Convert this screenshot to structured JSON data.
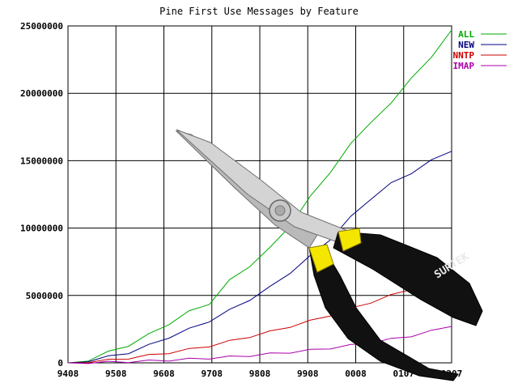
{
  "chart_data": {
    "type": "line",
    "title": "Pine First Use Messages by Feature",
    "xlabel": "",
    "ylabel": "",
    "x_tick_labels": [
      "9408",
      "9508",
      "9608",
      "9708",
      "9808",
      "9908",
      "0008",
      "0107",
      "0207"
    ],
    "y_tick_labels": [
      "0",
      "5000000",
      "10000000",
      "15000000",
      "20000000",
      "25000000"
    ],
    "y_ticks": [
      0,
      5000000,
      10000000,
      15000000,
      20000000,
      25000000
    ],
    "ylim": [
      0,
      25000000
    ],
    "grid": true,
    "legend_placement": "top-right",
    "series": [
      {
        "name": "ALL",
        "color": "#00aa00",
        "values": [
          0,
          200000,
          800000,
          1300000,
          2100000,
          2900000,
          3800000,
          4400000,
          6100000,
          7200000,
          8500000,
          10200000,
          12300000,
          14200000,
          16200000,
          17900000,
          19200000,
          21200000,
          22600000,
          24700000
        ]
      },
      {
        "name": "NEW",
        "color": "#000080",
        "values": [
          0,
          150000,
          450000,
          750000,
          1300000,
          1900000,
          2500000,
          3100000,
          3900000,
          4700000,
          5600000,
          6700000,
          7900000,
          9200000,
          10800000,
          12200000,
          13300000,
          14100000,
          15000000,
          15700000
        ]
      },
      {
        "name": "NNTP",
        "color": "#cc0000",
        "values": [
          0,
          80000,
          200000,
          350000,
          550000,
          750000,
          1000000,
          1250000,
          1600000,
          1950000,
          2300000,
          2700000,
          3100000,
          3550000,
          4000000,
          4500000,
          5000000,
          5500000,
          6000000,
          6400000
        ]
      },
      {
        "name": "IMAP",
        "color": "#aa00aa",
        "values": [
          0,
          20000,
          50000,
          90000,
          140000,
          200000,
          270000,
          350000,
          440000,
          540000,
          660000,
          790000,
          940000,
          1100000,
          1300000,
          1500000,
          1750000,
          2000000,
          2350000,
          2700000
        ]
      }
    ]
  },
  "overlay": {
    "icon": "pliers-icon",
    "brand_text": "SURTEK",
    "handle_color": "#111111",
    "band_color": "#f5e600"
  }
}
